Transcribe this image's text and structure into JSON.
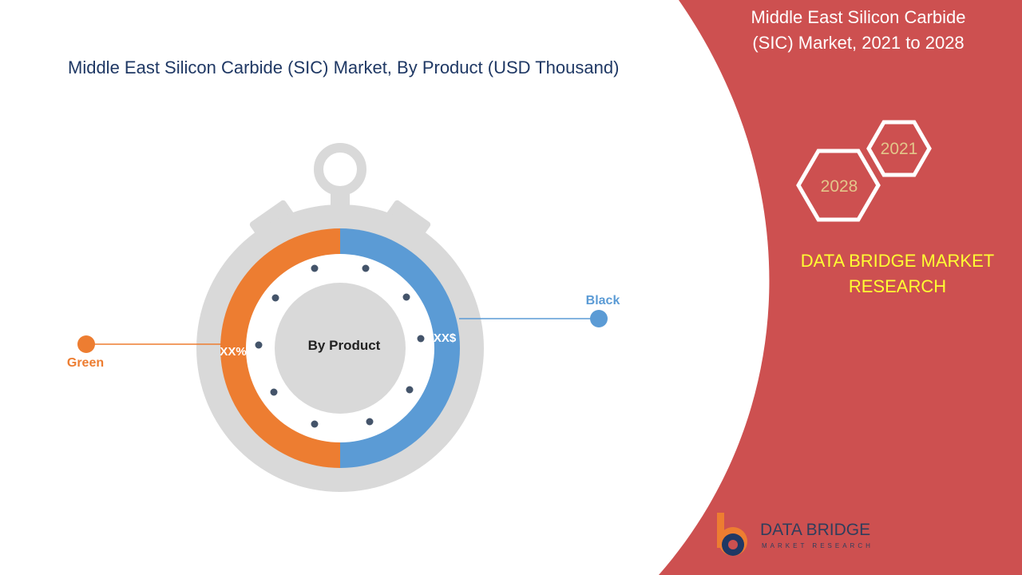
{
  "header": {
    "title": "Middle East Silicon Carbide (SIC) Market, By Product (USD Thousand)"
  },
  "side_panel": {
    "title_lines": [
      "Middle East Silicon Carbide",
      "(SIC) Market, 2021 to 2028"
    ],
    "hexagons": [
      "2021",
      "2028"
    ],
    "brand_lines": [
      "DATA BRIDGE MARKET",
      "RESEARCH"
    ]
  },
  "dial": {
    "center_label": "By Product",
    "left_label": "XX%",
    "right_label": "XX$",
    "segments": [
      {
        "name": "Green"
      },
      {
        "name": "Black"
      }
    ]
  },
  "logo": {
    "name": "DATA BRIDGE",
    "tagline": "MARKET RESEARCH"
  }
}
